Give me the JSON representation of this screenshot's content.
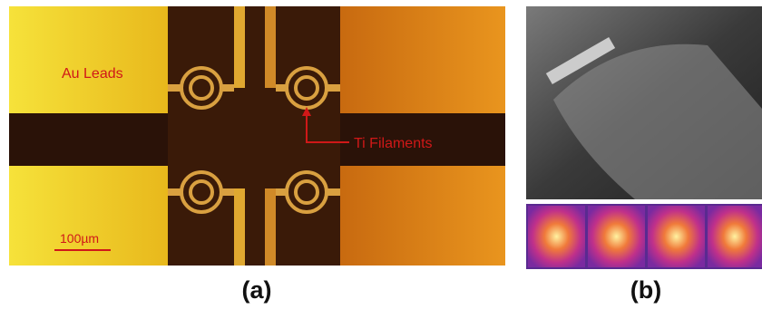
{
  "panel_a": {
    "labels": {
      "leads": "Au Leads",
      "filaments": "Ti Filaments",
      "scale_bar": "100µm"
    },
    "caption": "(a)"
  },
  "panel_b": {
    "caption": "(b)"
  }
}
